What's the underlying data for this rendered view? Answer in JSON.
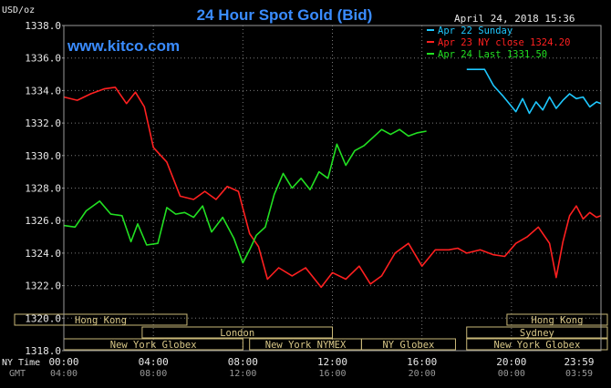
{
  "chart_data": {
    "type": "line",
    "title": "24 Hour Spot Gold (Bid)",
    "unit_label": "USD/oz",
    "watermark": "www.kitco.com",
    "timestamp": "April 24, 2018 15:36",
    "ylim": [
      1318,
      1338
    ],
    "y_ticks": [
      "1338.0",
      "1336.0",
      "1334.0",
      "1332.0",
      "1330.0",
      "1328.0",
      "1326.0",
      "1324.0",
      "1322.0",
      "1320.0",
      "1318.0"
    ],
    "x_axis_ny": {
      "label": "NY Time",
      "ticks": [
        "00:00",
        "04:00",
        "08:00",
        "12:00",
        "16:00",
        "20:00",
        "23:59"
      ]
    },
    "x_axis_gmt": {
      "label": "GMT",
      "ticks": [
        "04:00",
        "08:00",
        "12:00",
        "16:00",
        "20:00",
        "00:00",
        "03:59"
      ]
    },
    "legend": [
      {
        "text": "Apr 22 Sunday",
        "color": "#1ec8ff"
      },
      {
        "text": "Apr 23 NY close 1324.20",
        "color": "#ff2020"
      },
      {
        "text": "Apr 24 Last 1331.50",
        "color": "#22e022"
      }
    ],
    "sessions": [
      {
        "label": "Hong Kong",
        "row": 0,
        "start": -2.2,
        "end": 5.5
      },
      {
        "label": "London",
        "row": 1,
        "start": 3.5,
        "end": 12.0
      },
      {
        "label": "New York Globex",
        "row": 2,
        "start": 0.0,
        "end": 8.0
      },
      {
        "label": "New York NYMEX",
        "row": 2,
        "start": 8.3,
        "end": 13.3
      },
      {
        "label": "NY Globex",
        "row": 2,
        "start": 13.3,
        "end": 17.5
      },
      {
        "label": "Hong Kong",
        "row": 0,
        "start": 19.8,
        "end": 25.6
      },
      {
        "label": "Sydney",
        "row": 1,
        "start": 18.0,
        "end": 25.6
      },
      {
        "label": "New York Globex",
        "row": 2,
        "start": 18.0,
        "end": 25.6
      }
    ],
    "series": [
      {
        "name": "Apr 22 Sunday",
        "color": "#1ec8ff",
        "x": [
          18.0,
          18.8,
          19.2,
          19.6,
          19.9,
          20.2,
          20.5,
          20.8,
          21.1,
          21.4,
          21.7,
          22.0,
          22.3,
          22.6,
          22.9,
          23.2,
          23.5,
          23.8,
          24.0
        ],
        "y": [
          1335.3,
          1335.3,
          1334.3,
          1333.7,
          1333.2,
          1332.7,
          1333.5,
          1332.6,
          1333.3,
          1332.8,
          1333.6,
          1332.9,
          1333.4,
          1333.8,
          1333.5,
          1333.6,
          1333.0,
          1333.3,
          1333.2
        ]
      },
      {
        "name": "Apr 23 NY close 1324.20",
        "color": "#ff2020",
        "x": [
          0.0,
          0.6,
          1.2,
          1.8,
          2.3,
          2.8,
          3.2,
          3.6,
          4.0,
          4.6,
          5.2,
          5.8,
          6.3,
          6.8,
          7.3,
          7.8,
          8.3,
          8.7,
          9.1,
          9.6,
          10.2,
          10.8,
          11.5,
          12.0,
          12.6,
          13.2,
          13.7,
          14.2,
          14.8,
          15.4,
          16.0,
          16.6,
          17.2,
          17.6,
          18.0,
          18.6,
          19.2,
          19.7,
          20.2,
          20.7,
          21.2,
          21.7,
          22.0,
          22.3,
          22.6,
          22.9,
          23.2,
          23.5,
          23.8,
          24.0
        ],
        "y": [
          1333.6,
          1333.4,
          1333.8,
          1334.1,
          1334.2,
          1333.2,
          1333.9,
          1333.0,
          1330.5,
          1329.6,
          1327.5,
          1327.3,
          1327.8,
          1327.3,
          1328.1,
          1327.8,
          1325.2,
          1324.4,
          1322.4,
          1323.1,
          1322.6,
          1323.1,
          1321.9,
          1322.8,
          1322.4,
          1323.2,
          1322.1,
          1322.6,
          1324.0,
          1324.6,
          1323.2,
          1324.2,
          1324.2,
          1324.3,
          1324.0,
          1324.2,
          1323.9,
          1323.8,
          1324.6,
          1325.0,
          1325.6,
          1324.6,
          1322.5,
          1324.7,
          1326.3,
          1326.9,
          1326.1,
          1326.5,
          1326.2,
          1326.3
        ]
      },
      {
        "name": "Apr 24 Last 1331.50",
        "color": "#22e022",
        "x": [
          0.0,
          0.5,
          1.0,
          1.6,
          2.1,
          2.6,
          3.0,
          3.3,
          3.7,
          4.2,
          4.6,
          5.0,
          5.4,
          5.8,
          6.2,
          6.6,
          7.1,
          7.6,
          8.0,
          8.3,
          8.6,
          9.0,
          9.4,
          9.8,
          10.2,
          10.6,
          11.0,
          11.4,
          11.8,
          12.2,
          12.6,
          13.0,
          13.4,
          13.8,
          14.2,
          14.6,
          15.0,
          15.4,
          15.8,
          16.2
        ],
        "y": [
          1325.7,
          1325.6,
          1326.6,
          1327.2,
          1326.4,
          1326.3,
          1324.7,
          1325.8,
          1324.5,
          1324.6,
          1326.8,
          1326.4,
          1326.5,
          1326.2,
          1326.9,
          1325.3,
          1326.2,
          1324.9,
          1323.4,
          1324.2,
          1325.1,
          1325.6,
          1327.6,
          1328.9,
          1328.0,
          1328.6,
          1327.9,
          1329.0,
          1328.6,
          1330.7,
          1329.4,
          1330.3,
          1330.6,
          1331.1,
          1331.6,
          1331.3,
          1331.6,
          1331.2,
          1331.4,
          1331.5
        ]
      }
    ]
  }
}
